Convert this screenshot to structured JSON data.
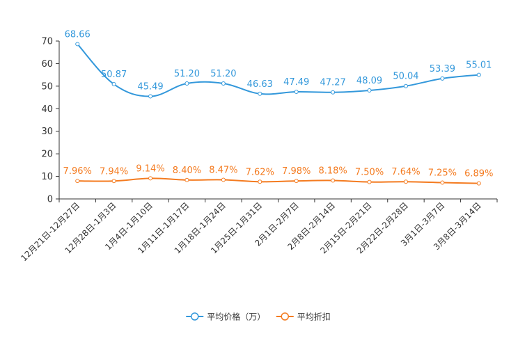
{
  "chart_data": {
    "type": "line",
    "categories": [
      "12月21日-12月27日",
      "12月28日-1月3日",
      "1月4日-1月10日",
      "1月11日-1月17日",
      "1月18日-1月24日",
      "1月25日-1月31日",
      "2月1日-2月7日",
      "2月8日-2月14日",
      "2月15日-2月21日",
      "2月22日-2月28日",
      "3月1日-3月7日",
      "3月8日-3月14日"
    ],
    "series": [
      {
        "name": "平均价格（万）",
        "color": "#3398DB",
        "values": [
          68.66,
          50.87,
          45.49,
          51.2,
          51.2,
          46.63,
          47.49,
          47.27,
          48.09,
          50.04,
          53.39,
          55.01
        ],
        "labels": [
          "68.66",
          "50.87",
          "45.49",
          "51.20",
          "51.20",
          "46.63",
          "47.49",
          "47.27",
          "48.09",
          "50.04",
          "53.39",
          "55.01"
        ]
      },
      {
        "name": "平均折扣",
        "color": "#F47B20",
        "values": [
          7.96,
          7.94,
          9.14,
          8.4,
          8.47,
          7.62,
          7.98,
          8.18,
          7.5,
          7.64,
          7.25,
          6.89
        ],
        "labels": [
          "7.96%",
          "7.94%",
          "9.14%",
          "8.40%",
          "8.47%",
          "7.62%",
          "7.98%",
          "8.18%",
          "7.50%",
          "7.64%",
          "7.25%",
          "6.89%"
        ]
      }
    ],
    "yticks": [
      "0",
      "10",
      "20",
      "30",
      "40",
      "50",
      "60",
      "70"
    ],
    "ylim": [
      0,
      70
    ],
    "legend_position": "bottom-center",
    "grid": false
  }
}
